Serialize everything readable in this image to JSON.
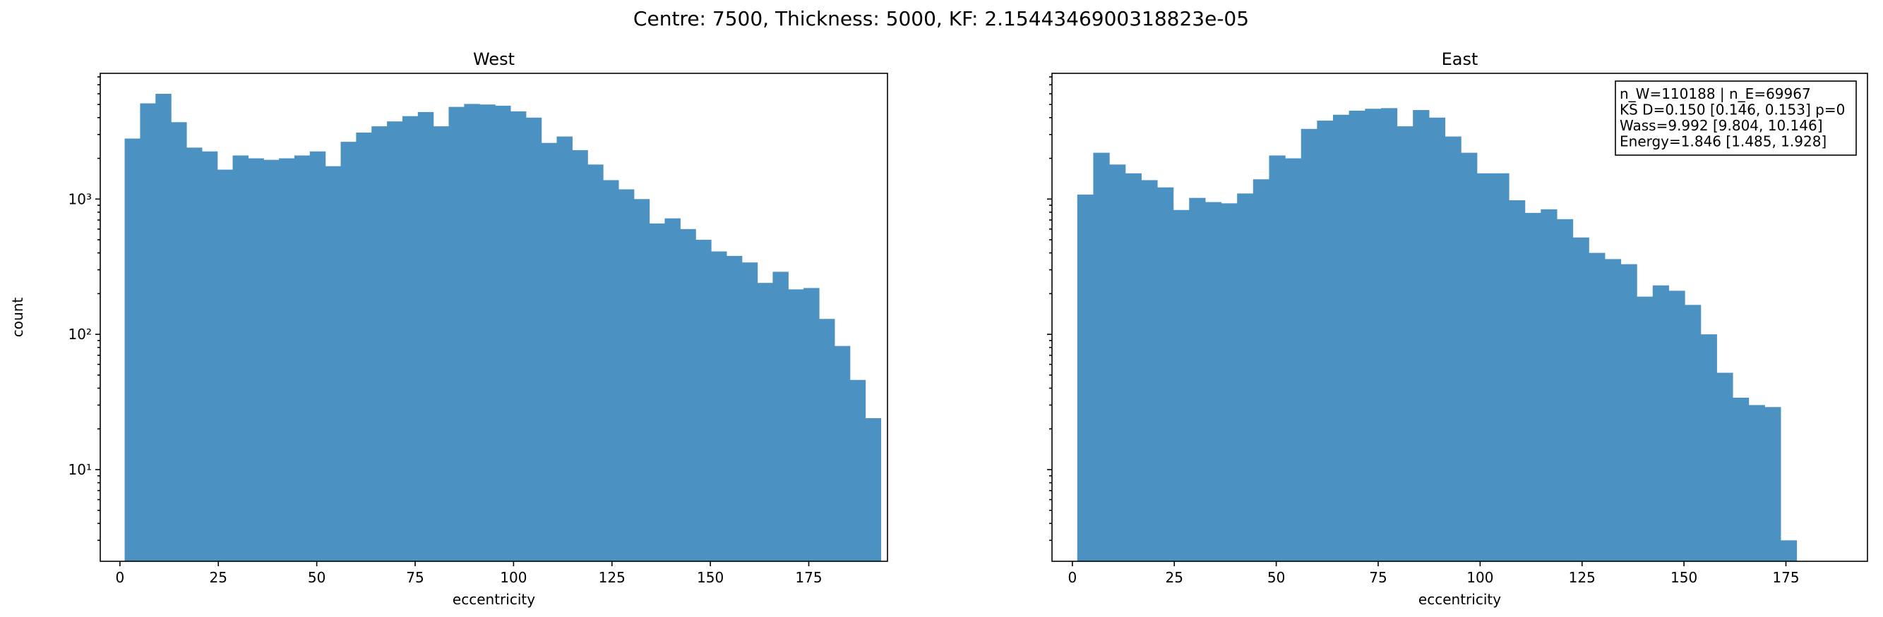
{
  "figure": {
    "suptitle": "Centre: 7500, Thickness: 5000, KF: 2.1544346900318823e-05"
  },
  "chart_data": [
    {
      "type": "bar",
      "title": "West",
      "xlabel": "eccentricity",
      "ylabel": "count",
      "yscale": "log",
      "xlim": [
        -5,
        195
      ],
      "ylim": [
        2.1,
        8500
      ],
      "xticks": [
        0,
        25,
        50,
        75,
        100,
        125,
        150,
        175
      ],
      "xtick_labels": [
        "0",
        "25",
        "50",
        "75",
        "100",
        "125",
        "150",
        "175"
      ],
      "yticks": [
        10,
        100,
        1000
      ],
      "ytick_labels": [
        "10¹",
        "10²",
        "10³"
      ],
      "bar_color": "#4b91c2",
      "bin_start": 1.2,
      "bin_width": 3.92,
      "values": [
        2800,
        5100,
        6000,
        3700,
        2400,
        2250,
        1650,
        2100,
        2000,
        1950,
        2000,
        2100,
        2250,
        1750,
        2650,
        3100,
        3450,
        3750,
        4100,
        4400,
        3450,
        4800,
        5050,
        5000,
        4900,
        4450,
        4000,
        2600,
        2900,
        2300,
        1800,
        1380,
        1180,
        1000,
        660,
        720,
        600,
        500,
        410,
        380,
        340,
        240,
        290,
        215,
        220,
        130,
        82,
        46,
        24
      ]
    },
    {
      "type": "bar",
      "title": "East",
      "xlabel": "eccentricity",
      "ylabel": "",
      "yscale": "log",
      "xlim": [
        -5,
        195
      ],
      "ylim": [
        2.1,
        8500
      ],
      "xticks": [
        0,
        25,
        50,
        75,
        100,
        125,
        150,
        175
      ],
      "xtick_labels": [
        "0",
        "25",
        "50",
        "75",
        "100",
        "125",
        "150",
        "175"
      ],
      "yticks": [
        10,
        100,
        1000
      ],
      "ytick_labels": [
        "",
        "",
        ""
      ],
      "bar_color": "#4b91c2",
      "bin_start": 1.2,
      "bin_width": 3.92,
      "values": [
        1080,
        2200,
        1800,
        1550,
        1380,
        1220,
        830,
        1020,
        950,
        930,
        1100,
        1400,
        2100,
        2000,
        3300,
        3800,
        4200,
        4500,
        4650,
        4700,
        3450,
        4550,
        4000,
        2900,
        2200,
        1550,
        1550,
        980,
        790,
        840,
        710,
        520,
        400,
        360,
        330,
        190,
        230,
        210,
        165,
        100,
        52,
        34,
        30,
        29,
        3
      ],
      "annotation": [
        "n_W=110188 | n_E=69967",
        "KS D=0.150 [0.146, 0.153]  p=0",
        "Wass=9.992 [9.804, 10.146]",
        "Energy=1.846 [1.485, 1.928]"
      ]
    }
  ]
}
